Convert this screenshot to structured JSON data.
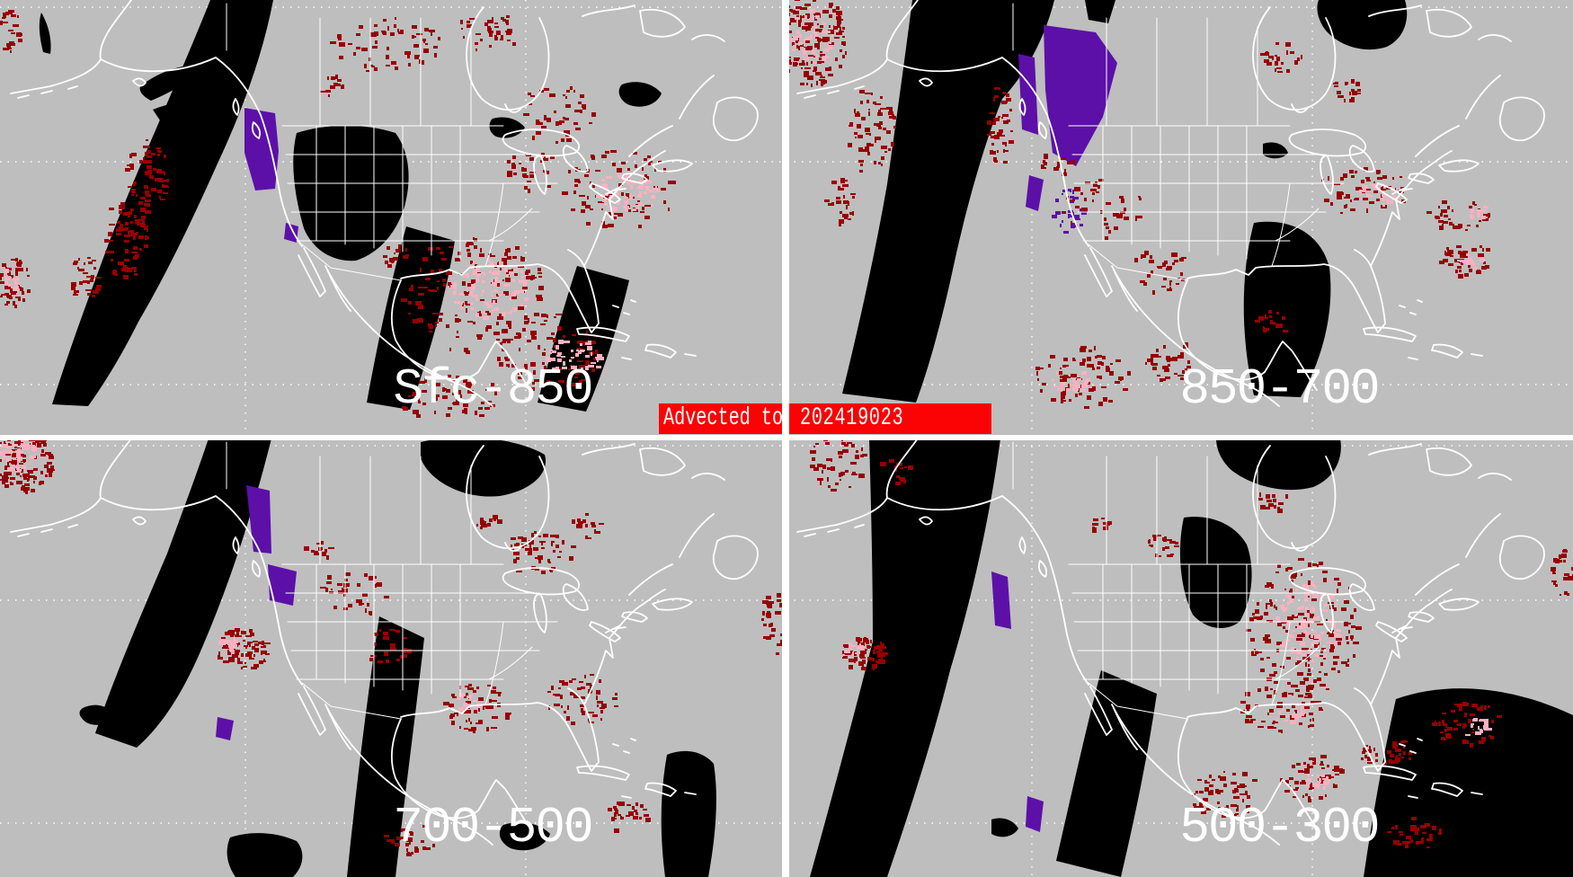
{
  "banner": {
    "label": "Advected to",
    "value": "202419023",
    "background": "#FB0204",
    "text_color": "#FFFFFF"
  },
  "panels": [
    {
      "id": "sfc-850",
      "label": "Sfc-850"
    },
    {
      "id": "850-700",
      "label": "850-700"
    },
    {
      "id": "700-500",
      "label": "700-500"
    },
    {
      "id": "500-300",
      "label": "500-300"
    }
  ],
  "colors": {
    "map_background": "#BEBEBE",
    "swath_black": "#000000",
    "moisture_dark_red": "#970000",
    "moisture_pink": "#FFB0C0",
    "moisture_purple": "#5C10A8",
    "map_outline": "#FFFFFF",
    "grid_dots": "#FFFFFF",
    "divider": "#FFFFFF",
    "label_text": "#FFFFFF"
  }
}
